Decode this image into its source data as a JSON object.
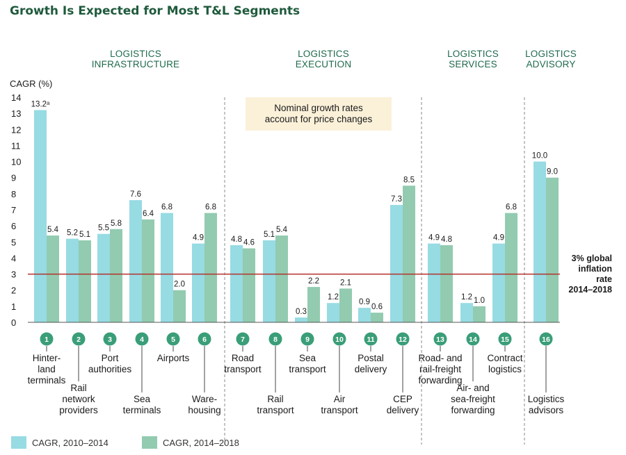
{
  "title": "Growth Is Expected for Most T&L Segments",
  "chart_data": {
    "type": "bar",
    "ylabel": "CAGR (%)",
    "ylim": [
      0,
      14
    ],
    "yticks": [
      0,
      1,
      2,
      3,
      4,
      5,
      6,
      7,
      8,
      9,
      10,
      11,
      12,
      13,
      14
    ],
    "segments": [
      {
        "name": [
          "LOGISTICS",
          "INFRASTRUCTURE"
        ],
        "categories": [
          1,
          2,
          3,
          4,
          5,
          6
        ]
      },
      {
        "name": [
          "LOGISTICS",
          "EXECUTION"
        ],
        "categories": [
          7,
          8,
          9,
          10,
          11,
          12
        ]
      },
      {
        "name": [
          "LOGISTICS",
          "SERVICES"
        ],
        "categories": [
          13,
          14,
          15
        ]
      },
      {
        "name": [
          "LOGISTICS",
          "ADVISORY"
        ],
        "categories": [
          16
        ]
      }
    ],
    "categories": [
      {
        "num": "1",
        "name": [
          "Hinter-",
          "land",
          "terminals"
        ],
        "pos": "top"
      },
      {
        "num": "2",
        "name": [
          "Rail",
          "network",
          "providers"
        ],
        "pos": "bottom"
      },
      {
        "num": "3",
        "name": [
          "Port",
          "authorities"
        ],
        "pos": "top"
      },
      {
        "num": "4",
        "name": [
          "Sea",
          "terminals"
        ],
        "pos": "bottom"
      },
      {
        "num": "5",
        "name": [
          "Airports"
        ],
        "pos": "top"
      },
      {
        "num": "6",
        "name": [
          "Ware-",
          "housing"
        ],
        "pos": "bottom"
      },
      {
        "num": "7",
        "name": [
          "Road",
          "transport"
        ],
        "pos": "top"
      },
      {
        "num": "8",
        "name": [
          "Rail",
          "transport"
        ],
        "pos": "bottom"
      },
      {
        "num": "9",
        "name": [
          "Sea",
          "transport"
        ],
        "pos": "top"
      },
      {
        "num": "10",
        "name": [
          "Air",
          "transport"
        ],
        "pos": "bottom"
      },
      {
        "num": "11",
        "name": [
          "Postal",
          "delivery"
        ],
        "pos": "top"
      },
      {
        "num": "12",
        "name": [
          "CEP",
          "delivery"
        ],
        "pos": "bottom"
      },
      {
        "num": "13",
        "name": [
          "Road- and",
          "rail-freight",
          "forwarding"
        ],
        "pos": "top"
      },
      {
        "num": "14",
        "name": [
          "Air- and",
          "sea-freight",
          "forwarding"
        ],
        "pos": "bottom"
      },
      {
        "num": "15",
        "name": [
          "Contract",
          "logistics"
        ],
        "pos": "top"
      },
      {
        "num": "16",
        "name": [
          "Logistics",
          "advisors"
        ],
        "pos": "bottom"
      }
    ],
    "series": [
      {
        "name": "CAGR, 2010–2014",
        "color": "#97dbe3",
        "values": [
          13.2,
          5.2,
          5.5,
          7.6,
          6.8,
          4.9,
          4.8,
          5.1,
          0.3,
          1.2,
          0.9,
          7.3,
          4.9,
          1.2,
          4.9,
          10.0
        ],
        "labels": [
          "13.2ᵃ",
          "5.2",
          "5.5",
          "7.6",
          "6.8",
          "4.9",
          "4.8",
          "5.1",
          "0.3",
          "1.2",
          "0.9",
          "7.3",
          "4.9",
          "1.2",
          "4.9",
          "10.0"
        ]
      },
      {
        "name": "CAGR, 2014–2018",
        "color": "#92cbb0",
        "values": [
          5.4,
          5.1,
          5.8,
          6.4,
          2.0,
          6.8,
          4.6,
          5.4,
          2.2,
          2.1,
          0.6,
          8.5,
          4.8,
          1.0,
          6.8,
          9.0
        ],
        "labels": [
          "5.4",
          "5.1",
          "5.8",
          "6.4",
          "2.0",
          "6.8",
          "4.6",
          "5.4",
          "2.2",
          "2.1",
          "0.6",
          "8.5",
          "4.8",
          "1.0",
          "6.8",
          "9.0"
        ]
      }
    ],
    "reference_line": {
      "value": 3,
      "label": [
        "3% global",
        "inflation",
        "rate",
        "2014–2018"
      ],
      "color": "#b3312b"
    },
    "note": [
      "Nominal growth rates",
      "account for price changes"
    ],
    "grid": false,
    "legend": "bottom-left"
  },
  "colors": {
    "number_circle": "#3a9e78",
    "divider": "#888888",
    "note_bg": "#fbf1d9",
    "segment_text": "#1f6a4b"
  }
}
